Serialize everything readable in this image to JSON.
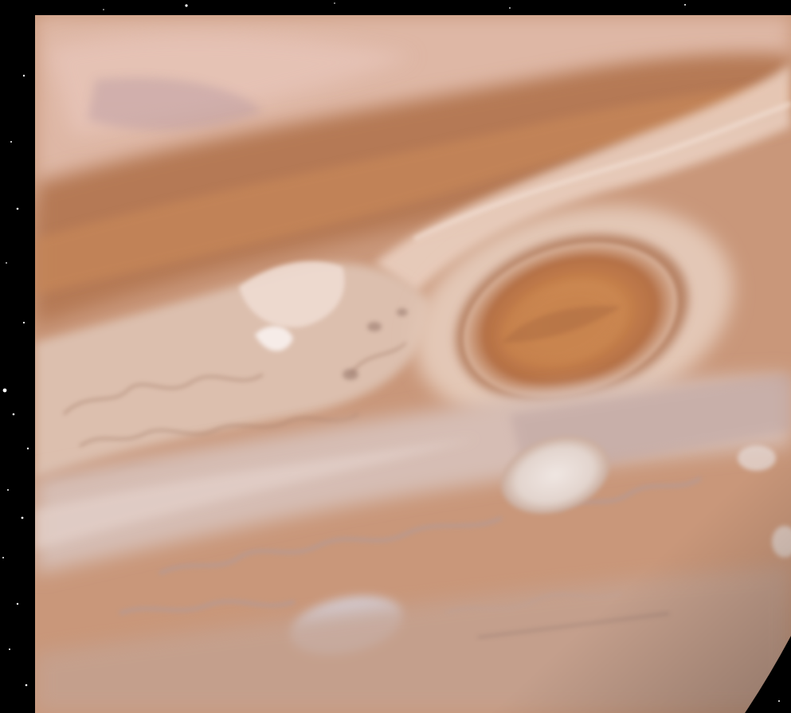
{
  "image": {
    "kind": "photograph",
    "subject": "jupiter-great-red-spot",
    "colors": {
      "space": "#000000",
      "band_light": "#e0b79e",
      "band_mid": "#c8946f",
      "band_dark": "#a87350",
      "belt_pale": "#dcc3b6",
      "red_spot_outer": "#a86a42",
      "red_spot_inner": "#d08a4e",
      "white_oval": "#e4dad6",
      "turbulence": "#b8a19c",
      "stars": "#ffffff"
    }
  }
}
